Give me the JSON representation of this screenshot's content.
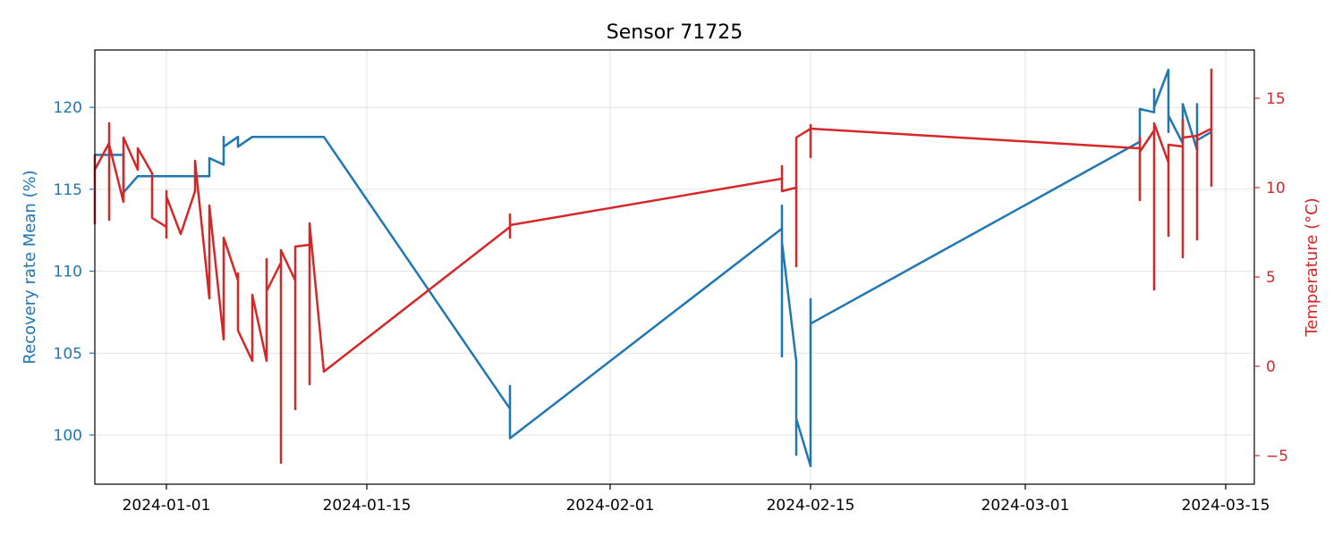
{
  "chart_data": {
    "type": "line",
    "title": "Sensor 71725",
    "xlabel": "",
    "x_ticks": [
      "2024-01-01",
      "2024-01-15",
      "2024-02-01",
      "2024-02-15",
      "2024-03-01",
      "2024-03-15"
    ],
    "xlim": [
      "2023-12-27",
      "2024-03-17"
    ],
    "grid": true,
    "y_left": {
      "label": "Recovery rate Mean (%)",
      "color": "#1f77b4",
      "ylim": [
        97,
        123.5
      ],
      "ticks": [
        100,
        105,
        110,
        115,
        120
      ]
    },
    "y_right": {
      "label": "Temperature (°C)",
      "color": "#d62728",
      "ylim": [
        -6.6,
        17.7
      ],
      "ticks": [
        -5,
        0,
        5,
        10,
        15
      ]
    },
    "series": [
      {
        "axis": "left",
        "color": "#1f77b4",
        "points": [
          [
            "2023-12-27",
            117.1
          ],
          [
            "2023-12-27",
            117.1
          ],
          [
            "2023-12-29",
            117.1
          ],
          [
            "2023-12-29",
            114.8
          ],
          [
            "2023-12-30",
            115.8
          ],
          [
            "2024-01-04",
            115.8
          ],
          [
            "2024-01-04",
            116.9
          ],
          [
            "2024-01-05",
            116.5
          ],
          [
            "2024-01-05",
            118.2
          ],
          [
            "2024-01-05",
            117.6
          ],
          [
            "2024-01-06",
            118.2
          ],
          [
            "2024-01-06",
            117.6
          ],
          [
            "2024-01-07",
            118.2
          ],
          [
            "2024-01-12",
            118.2
          ],
          [
            "2024-01-25",
            101.6
          ],
          [
            "2024-01-25",
            103.0
          ],
          [
            "2024-01-25",
            99.8
          ],
          [
            "2024-02-13",
            112.6
          ],
          [
            "2024-02-13",
            114.0
          ],
          [
            "2024-02-13",
            104.8
          ],
          [
            "2024-02-13",
            111.8
          ],
          [
            "2024-02-14",
            104.5
          ],
          [
            "2024-02-14",
            98.8
          ],
          [
            "2024-02-14",
            101.0
          ],
          [
            "2024-02-15",
            98.1
          ],
          [
            "2024-02-15",
            108.3
          ],
          [
            "2024-02-15",
            106.8
          ],
          [
            "2024-03-09",
            117.9
          ],
          [
            "2024-03-09",
            119.9
          ],
          [
            "2024-03-10",
            119.7
          ],
          [
            "2024-03-10",
            121.1
          ],
          [
            "2024-03-10",
            120.0
          ],
          [
            "2024-03-11",
            122.3
          ],
          [
            "2024-03-11",
            118.5
          ],
          [
            "2024-03-11",
            119.5
          ],
          [
            "2024-03-12",
            117.8
          ],
          [
            "2024-03-12",
            120.2
          ],
          [
            "2024-03-13",
            117.4
          ],
          [
            "2024-03-13",
            120.2
          ],
          [
            "2024-03-13",
            118.0
          ],
          [
            "2024-03-14",
            118.5
          ]
        ]
      },
      {
        "axis": "right",
        "color": "#d62728",
        "points": [
          [
            "2023-12-27",
            9.0
          ],
          [
            "2023-12-27",
            8.0
          ],
          [
            "2023-12-27",
            11.8
          ],
          [
            "2023-12-27",
            11.0
          ],
          [
            "2023-12-28",
            12.5
          ],
          [
            "2023-12-28",
            8.2
          ],
          [
            "2023-12-28",
            13.6
          ],
          [
            "2023-12-28",
            12.4
          ],
          [
            "2023-12-29",
            9.2
          ],
          [
            "2023-12-29",
            12.8
          ],
          [
            "2023-12-30",
            11.0
          ],
          [
            "2023-12-30",
            12.2
          ],
          [
            "2023-12-31",
            10.8
          ],
          [
            "2023-12-31",
            8.3
          ],
          [
            "2024-01-01",
            7.8
          ],
          [
            "2024-01-01",
            9.8
          ],
          [
            "2024-01-01",
            7.2
          ],
          [
            "2024-01-01",
            9.5
          ],
          [
            "2024-01-02",
            7.4
          ],
          [
            "2024-01-03",
            9.8
          ],
          [
            "2024-01-03",
            11.5
          ],
          [
            "2024-01-04",
            3.8
          ],
          [
            "2024-01-04",
            9.0
          ],
          [
            "2024-01-05",
            1.5
          ],
          [
            "2024-01-05",
            7.2
          ],
          [
            "2024-01-06",
            4.8
          ],
          [
            "2024-01-06",
            5.2
          ],
          [
            "2024-01-06",
            2.0
          ],
          [
            "2024-01-07",
            0.3
          ],
          [
            "2024-01-07",
            4.0
          ],
          [
            "2024-01-08",
            0.3
          ],
          [
            "2024-01-08",
            6.0
          ],
          [
            "2024-01-08",
            4.2
          ],
          [
            "2024-01-09",
            5.8
          ],
          [
            "2024-01-09",
            -5.4
          ],
          [
            "2024-01-09",
            6.5
          ],
          [
            "2024-01-10",
            4.8
          ],
          [
            "2024-01-10",
            -2.4
          ],
          [
            "2024-01-10",
            6.7
          ],
          [
            "2024-01-11",
            6.8
          ],
          [
            "2024-01-11",
            -1.0
          ],
          [
            "2024-01-11",
            8.0
          ],
          [
            "2024-01-12",
            -0.3
          ],
          [
            "2024-01-25",
            7.8
          ],
          [
            "2024-01-25",
            8.5
          ],
          [
            "2024-01-25",
            7.2
          ],
          [
            "2024-01-25",
            7.9
          ],
          [
            "2024-02-13",
            10.5
          ],
          [
            "2024-02-13",
            11.2
          ],
          [
            "2024-02-13",
            9.8
          ],
          [
            "2024-02-14",
            10.0
          ],
          [
            "2024-02-14",
            5.6
          ],
          [
            "2024-02-14",
            12.8
          ],
          [
            "2024-02-15",
            13.3
          ],
          [
            "2024-02-15",
            11.7
          ],
          [
            "2024-02-15",
            13.5
          ],
          [
            "2024-02-15",
            13.3
          ],
          [
            "2024-03-09",
            12.2
          ],
          [
            "2024-03-09",
            9.3
          ],
          [
            "2024-03-09",
            12.8
          ],
          [
            "2024-03-09",
            12.0
          ],
          [
            "2024-03-10",
            13.2
          ],
          [
            "2024-03-10",
            4.3
          ],
          [
            "2024-03-10",
            13.6
          ],
          [
            "2024-03-11",
            11.4
          ],
          [
            "2024-03-11",
            7.3
          ],
          [
            "2024-03-11",
            12.4
          ],
          [
            "2024-03-12",
            12.3
          ],
          [
            "2024-03-12",
            6.1
          ],
          [
            "2024-03-12",
            13.8
          ],
          [
            "2024-03-12",
            12.8
          ],
          [
            "2024-03-13",
            12.9
          ],
          [
            "2024-03-13",
            7.1
          ],
          [
            "2024-03-13",
            12.9
          ],
          [
            "2024-03-14",
            13.3
          ],
          [
            "2024-03-14",
            10.1
          ],
          [
            "2024-03-14",
            16.6
          ],
          [
            "2024-03-14",
            13.0
          ]
        ]
      }
    ]
  }
}
